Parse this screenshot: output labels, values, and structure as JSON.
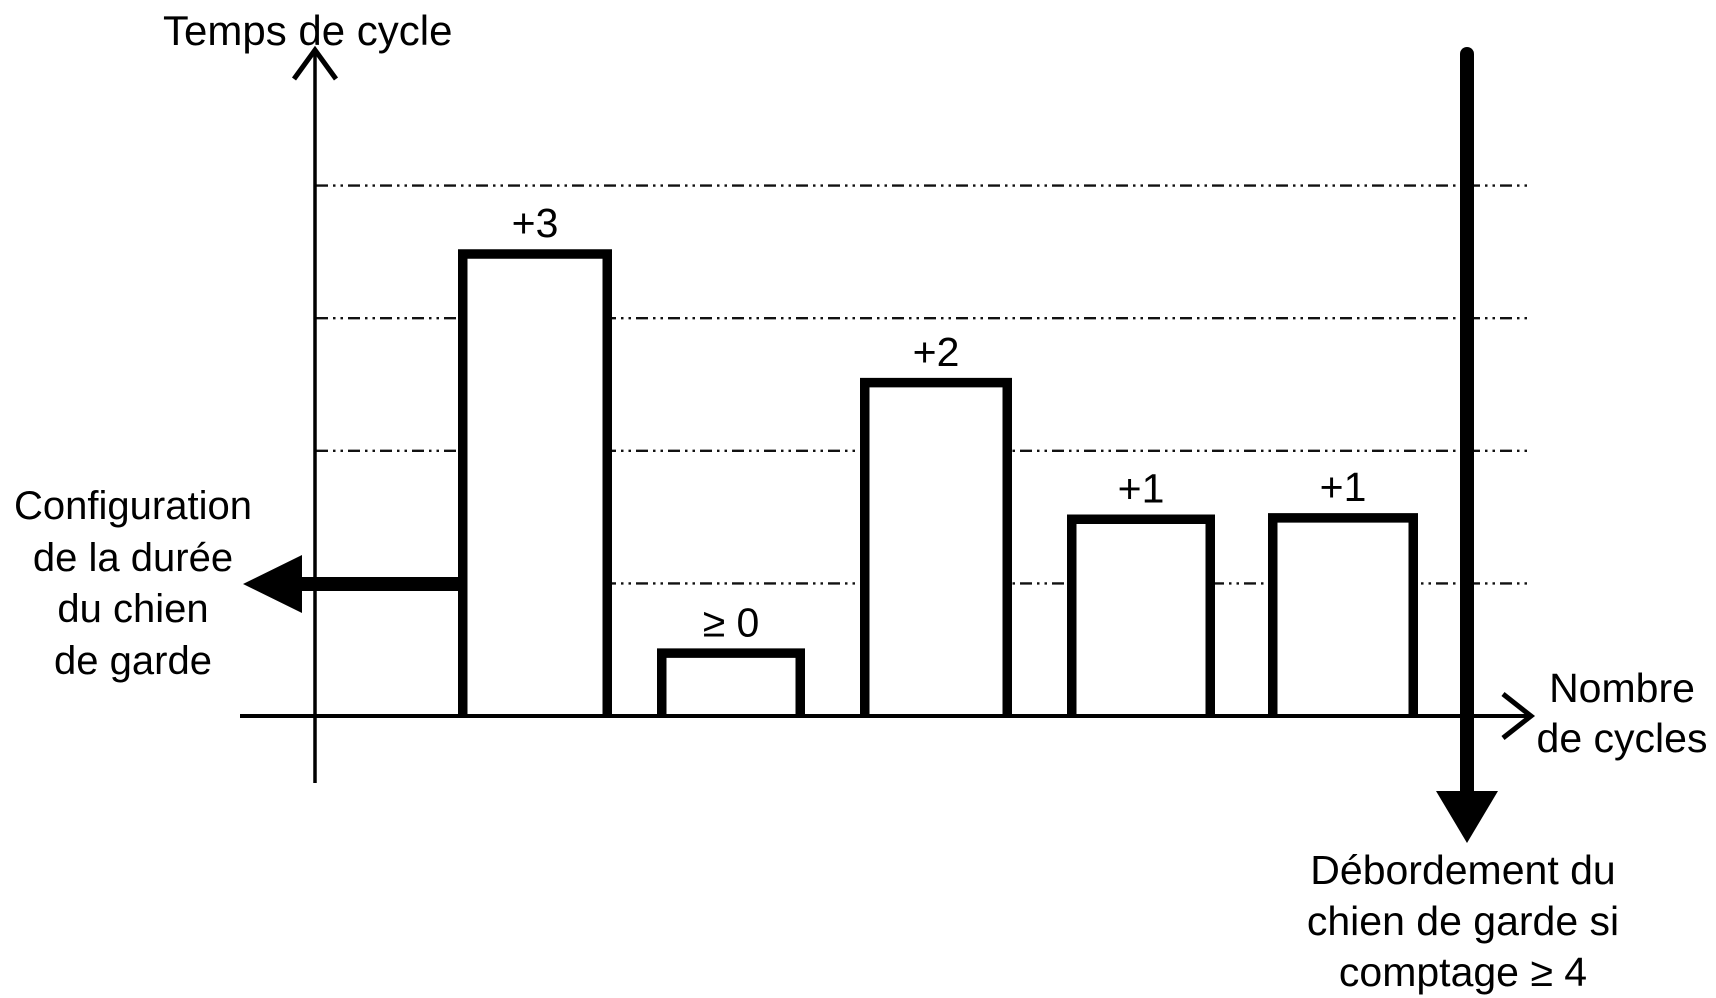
{
  "figure": {
    "y_axis_title": "Temps de cycle",
    "x_axis_label_lines": [
      "Nombre",
      "de cycles"
    ],
    "config_annotation_lines": [
      "Configuration",
      "de la durée",
      "du chien",
      "de garde"
    ],
    "overflow_annotation_lines": [
      "Débordement du",
      "chien de garde si",
      "comptage ≥ 4"
    ],
    "colors": {
      "ink": "#000000",
      "background": "#ffffff"
    }
  },
  "chart_data": {
    "type": "bar",
    "ylabel": "Temps de cycle",
    "xlabel": "Nombre de cycles",
    "bars": [
      {
        "label": "+3",
        "height_units": 3.52
      },
      {
        "label": "≥ 0",
        "height_units": 0.51
      },
      {
        "label": "+2",
        "height_units": 2.55
      },
      {
        "label": "+1",
        "height_units": 1.52
      },
      {
        "label": "+1",
        "height_units": 1.53
      }
    ],
    "gridlines_units": [
      1,
      2,
      3,
      4
    ],
    "watchdog_config_level_units": 1,
    "grid": "horizontal dash-dot lines",
    "legend": "none",
    "annotations": {
      "left_arrow_label": "Configuration de la durée du chien de garde",
      "down_arrow_label": "Débordement du chien de garde si comptage ≥ 4"
    }
  }
}
